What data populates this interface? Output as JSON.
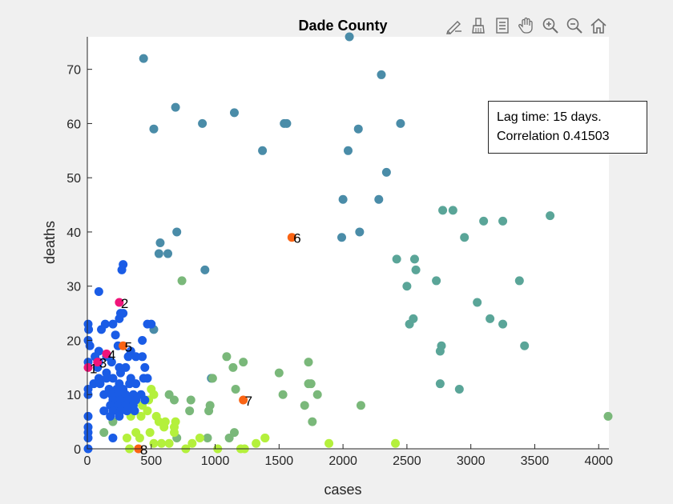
{
  "toolbar": {
    "buttons": [
      {
        "name": "edit-plot-icon"
      },
      {
        "name": "brush-icon"
      },
      {
        "name": "data-tips-icon"
      },
      {
        "name": "pan-hand-icon"
      },
      {
        "name": "zoom-in-icon"
      },
      {
        "name": "zoom-out-icon"
      },
      {
        "name": "home-icon"
      }
    ]
  },
  "legend": {
    "line1": "Lag time: 15 days.",
    "line2": "Correlation 0.41503"
  },
  "chart_data": {
    "type": "scatter",
    "title": "Dade County",
    "xlabel": "cases",
    "ylabel": "deaths",
    "xlim": [
      0,
      4080
    ],
    "ylim": [
      0,
      76
    ],
    "xticks": [
      0,
      500,
      1000,
      1500,
      2000,
      2500,
      3000,
      3500,
      4000
    ],
    "yticks": [
      0,
      10,
      20,
      30,
      40,
      50,
      60,
      70
    ],
    "grid": false,
    "colors": {
      "blue": "#1a5ce6",
      "steel": "#4a8ca8",
      "teal": "#5aa598",
      "green": "#7ab87a",
      "lime": "#b4f03c",
      "pink": "#f0147a",
      "orange": "#fa6414"
    },
    "points": [
      {
        "x": 2050,
        "y": 76,
        "c": "steel"
      },
      {
        "x": 2300,
        "y": 69,
        "c": "steel"
      },
      {
        "x": 440,
        "y": 72,
        "c": "steel"
      },
      {
        "x": 690,
        "y": 63,
        "c": "steel"
      },
      {
        "x": 1150,
        "y": 62,
        "c": "steel"
      },
      {
        "x": 520,
        "y": 59,
        "c": "steel"
      },
      {
        "x": 900,
        "y": 60,
        "c": "steel"
      },
      {
        "x": 1540,
        "y": 60,
        "c": "steel"
      },
      {
        "x": 1560,
        "y": 60,
        "c": "steel"
      },
      {
        "x": 2450,
        "y": 60,
        "c": "steel"
      },
      {
        "x": 2120,
        "y": 59,
        "c": "steel"
      },
      {
        "x": 1370,
        "y": 55,
        "c": "steel"
      },
      {
        "x": 2040,
        "y": 55,
        "c": "steel"
      },
      {
        "x": 2340,
        "y": 51,
        "c": "steel"
      },
      {
        "x": 2000,
        "y": 46,
        "c": "steel"
      },
      {
        "x": 2280,
        "y": 46,
        "c": "steel"
      },
      {
        "x": 2130,
        "y": 40,
        "c": "steel"
      },
      {
        "x": 1990,
        "y": 39,
        "c": "steel"
      },
      {
        "x": 700,
        "y": 40,
        "c": "steel"
      },
      {
        "x": 570,
        "y": 38,
        "c": "steel"
      },
      {
        "x": 560,
        "y": 36,
        "c": "steel"
      },
      {
        "x": 630,
        "y": 36,
        "c": "steel"
      },
      {
        "x": 920,
        "y": 33,
        "c": "steel"
      },
      {
        "x": 970,
        "y": 13,
        "c": "steel"
      },
      {
        "x": 520,
        "y": 22,
        "c": "steel"
      },
      {
        "x": 2780,
        "y": 44,
        "c": "teal"
      },
      {
        "x": 2860,
        "y": 44,
        "c": "teal"
      },
      {
        "x": 3100,
        "y": 42,
        "c": "teal"
      },
      {
        "x": 3250,
        "y": 42,
        "c": "teal"
      },
      {
        "x": 3620,
        "y": 43,
        "c": "teal"
      },
      {
        "x": 2950,
        "y": 39,
        "c": "teal"
      },
      {
        "x": 2420,
        "y": 35,
        "c": "teal"
      },
      {
        "x": 2560,
        "y": 35,
        "c": "teal"
      },
      {
        "x": 2570,
        "y": 33,
        "c": "teal"
      },
      {
        "x": 2730,
        "y": 31,
        "c": "teal"
      },
      {
        "x": 3380,
        "y": 31,
        "c": "teal"
      },
      {
        "x": 2500,
        "y": 30,
        "c": "teal"
      },
      {
        "x": 3050,
        "y": 27,
        "c": "teal"
      },
      {
        "x": 3150,
        "y": 24,
        "c": "teal"
      },
      {
        "x": 3250,
        "y": 23,
        "c": "teal"
      },
      {
        "x": 2520,
        "y": 23,
        "c": "teal"
      },
      {
        "x": 2550,
        "y": 24,
        "c": "teal"
      },
      {
        "x": 2770,
        "y": 19,
        "c": "teal"
      },
      {
        "x": 2760,
        "y": 18,
        "c": "teal"
      },
      {
        "x": 3420,
        "y": 19,
        "c": "teal"
      },
      {
        "x": 2760,
        "y": 12,
        "c": "teal"
      },
      {
        "x": 2910,
        "y": 11,
        "c": "teal"
      },
      {
        "x": 740,
        "y": 31,
        "c": "green"
      },
      {
        "x": 1090,
        "y": 17,
        "c": "green"
      },
      {
        "x": 1220,
        "y": 16,
        "c": "green"
      },
      {
        "x": 1730,
        "y": 16,
        "c": "green"
      },
      {
        "x": 1140,
        "y": 15,
        "c": "green"
      },
      {
        "x": 1500,
        "y": 14,
        "c": "green"
      },
      {
        "x": 1730,
        "y": 12,
        "c": "green"
      },
      {
        "x": 1750,
        "y": 12,
        "c": "green"
      },
      {
        "x": 1160,
        "y": 11,
        "c": "green"
      },
      {
        "x": 1530,
        "y": 10,
        "c": "green"
      },
      {
        "x": 1800,
        "y": 10,
        "c": "green"
      },
      {
        "x": 640,
        "y": 10,
        "c": "green"
      },
      {
        "x": 680,
        "y": 9,
        "c": "green"
      },
      {
        "x": 810,
        "y": 9,
        "c": "green"
      },
      {
        "x": 980,
        "y": 13,
        "c": "green"
      },
      {
        "x": 960,
        "y": 8,
        "c": "green"
      },
      {
        "x": 950,
        "y": 7,
        "c": "green"
      },
      {
        "x": 1700,
        "y": 8,
        "c": "green"
      },
      {
        "x": 2140,
        "y": 8,
        "c": "green"
      },
      {
        "x": 800,
        "y": 7,
        "c": "green"
      },
      {
        "x": 1760,
        "y": 5,
        "c": "green"
      },
      {
        "x": 1150,
        "y": 3,
        "c": "green"
      },
      {
        "x": 1110,
        "y": 2,
        "c": "green"
      },
      {
        "x": 940,
        "y": 2,
        "c": "green"
      },
      {
        "x": 700,
        "y": 2,
        "c": "green"
      },
      {
        "x": 200,
        "y": 5,
        "c": "green"
      },
      {
        "x": 320,
        "y": 7,
        "c": "green"
      },
      {
        "x": 260,
        "y": 10,
        "c": "green"
      },
      {
        "x": 130,
        "y": 3,
        "c": "green"
      },
      {
        "x": 500,
        "y": 11,
        "c": "lime"
      },
      {
        "x": 520,
        "y": 10,
        "c": "lime"
      },
      {
        "x": 480,
        "y": 9,
        "c": "lime"
      },
      {
        "x": 430,
        "y": 8,
        "c": "lime"
      },
      {
        "x": 470,
        "y": 7,
        "c": "lime"
      },
      {
        "x": 540,
        "y": 6,
        "c": "lime"
      },
      {
        "x": 420,
        "y": 6,
        "c": "lime"
      },
      {
        "x": 340,
        "y": 6,
        "c": "lime"
      },
      {
        "x": 560,
        "y": 5,
        "c": "lime"
      },
      {
        "x": 600,
        "y": 4,
        "c": "lime"
      },
      {
        "x": 610,
        "y": 5,
        "c": "lime"
      },
      {
        "x": 680,
        "y": 4,
        "c": "lime"
      },
      {
        "x": 690,
        "y": 5,
        "c": "lime"
      },
      {
        "x": 680,
        "y": 3,
        "c": "lime"
      },
      {
        "x": 490,
        "y": 3,
        "c": "lime"
      },
      {
        "x": 380,
        "y": 3,
        "c": "lime"
      },
      {
        "x": 310,
        "y": 2,
        "c": "lime"
      },
      {
        "x": 410,
        "y": 2,
        "c": "lime"
      },
      {
        "x": 520,
        "y": 1,
        "c": "lime"
      },
      {
        "x": 580,
        "y": 1,
        "c": "lime"
      },
      {
        "x": 640,
        "y": 1,
        "c": "lime"
      },
      {
        "x": 820,
        "y": 1,
        "c": "lime"
      },
      {
        "x": 880,
        "y": 2,
        "c": "lime"
      },
      {
        "x": 330,
        "y": 0,
        "c": "lime"
      },
      {
        "x": 770,
        "y": 0,
        "c": "lime"
      },
      {
        "x": 1020,
        "y": 0,
        "c": "lime"
      },
      {
        "x": 1200,
        "y": 0,
        "c": "lime"
      },
      {
        "x": 1230,
        "y": 0,
        "c": "lime"
      },
      {
        "x": 1320,
        "y": 1,
        "c": "lime"
      },
      {
        "x": 1390,
        "y": 2,
        "c": "lime"
      },
      {
        "x": 1890,
        "y": 1,
        "c": "lime"
      },
      {
        "x": 2410,
        "y": 1,
        "c": "lime"
      },
      {
        "x": 1390,
        "y": 2,
        "c": "lime"
      },
      {
        "x": 4090,
        "y": 6,
        "c": "green"
      },
      {
        "x": 0,
        "y": 23,
        "c": "blue"
      },
      {
        "x": 10,
        "y": 22,
        "c": "blue"
      },
      {
        "x": 0,
        "y": 20,
        "c": "blue"
      },
      {
        "x": 20,
        "y": 19,
        "c": "blue"
      },
      {
        "x": 0,
        "y": 16,
        "c": "blue"
      },
      {
        "x": 0,
        "y": 11,
        "c": "blue"
      },
      {
        "x": 0,
        "y": 10,
        "c": "blue"
      },
      {
        "x": 0,
        "y": 6,
        "c": "blue"
      },
      {
        "x": 0,
        "y": 4,
        "c": "blue"
      },
      {
        "x": 0,
        "y": 3,
        "c": "blue"
      },
      {
        "x": 0,
        "y": 2,
        "c": "blue"
      },
      {
        "x": 0,
        "y": 0,
        "c": "blue"
      },
      {
        "x": 90,
        "y": 29,
        "c": "blue"
      },
      {
        "x": 280,
        "y": 34,
        "c": "blue"
      },
      {
        "x": 270,
        "y": 33,
        "c": "blue"
      },
      {
        "x": 110,
        "y": 22,
        "c": "blue"
      },
      {
        "x": 140,
        "y": 23,
        "c": "blue"
      },
      {
        "x": 200,
        "y": 23,
        "c": "blue"
      },
      {
        "x": 260,
        "y": 25,
        "c": "blue"
      },
      {
        "x": 280,
        "y": 25,
        "c": "blue"
      },
      {
        "x": 250,
        "y": 24,
        "c": "blue"
      },
      {
        "x": 470,
        "y": 23,
        "c": "blue"
      },
      {
        "x": 500,
        "y": 23,
        "c": "blue"
      },
      {
        "x": 220,
        "y": 21,
        "c": "blue"
      },
      {
        "x": 430,
        "y": 20,
        "c": "blue"
      },
      {
        "x": 240,
        "y": 19,
        "c": "blue"
      },
      {
        "x": 340,
        "y": 18,
        "c": "blue"
      },
      {
        "x": 90,
        "y": 18,
        "c": "blue"
      },
      {
        "x": 150,
        "y": 17,
        "c": "blue"
      },
      {
        "x": 60,
        "y": 17,
        "c": "blue"
      },
      {
        "x": 90,
        "y": 16,
        "c": "blue"
      },
      {
        "x": 190,
        "y": 16,
        "c": "blue"
      },
      {
        "x": 320,
        "y": 17,
        "c": "blue"
      },
      {
        "x": 380,
        "y": 17,
        "c": "blue"
      },
      {
        "x": 430,
        "y": 17,
        "c": "blue"
      },
      {
        "x": 80,
        "y": 15,
        "c": "blue"
      },
      {
        "x": 150,
        "y": 14,
        "c": "blue"
      },
      {
        "x": 250,
        "y": 15,
        "c": "blue"
      },
      {
        "x": 300,
        "y": 15,
        "c": "blue"
      },
      {
        "x": 450,
        "y": 15,
        "c": "blue"
      },
      {
        "x": 90,
        "y": 13,
        "c": "blue"
      },
      {
        "x": 150,
        "y": 13,
        "c": "blue"
      },
      {
        "x": 200,
        "y": 13,
        "c": "blue"
      },
      {
        "x": 260,
        "y": 14,
        "c": "blue"
      },
      {
        "x": 340,
        "y": 13,
        "c": "blue"
      },
      {
        "x": 440,
        "y": 13,
        "c": "blue"
      },
      {
        "x": 470,
        "y": 13,
        "c": "blue"
      },
      {
        "x": 50,
        "y": 12,
        "c": "blue"
      },
      {
        "x": 100,
        "y": 12,
        "c": "blue"
      },
      {
        "x": 250,
        "y": 12,
        "c": "blue"
      },
      {
        "x": 330,
        "y": 12,
        "c": "blue"
      },
      {
        "x": 380,
        "y": 12,
        "c": "blue"
      },
      {
        "x": 170,
        "y": 11,
        "c": "blue"
      },
      {
        "x": 230,
        "y": 11,
        "c": "blue"
      },
      {
        "x": 280,
        "y": 11,
        "c": "blue"
      },
      {
        "x": 130,
        "y": 10,
        "c": "blue"
      },
      {
        "x": 190,
        "y": 10,
        "c": "blue"
      },
      {
        "x": 240,
        "y": 10,
        "c": "blue"
      },
      {
        "x": 300,
        "y": 10,
        "c": "blue"
      },
      {
        "x": 360,
        "y": 10,
        "c": "blue"
      },
      {
        "x": 420,
        "y": 10,
        "c": "blue"
      },
      {
        "x": 200,
        "y": 9,
        "c": "blue"
      },
      {
        "x": 260,
        "y": 9,
        "c": "blue"
      },
      {
        "x": 320,
        "y": 9,
        "c": "blue"
      },
      {
        "x": 380,
        "y": 9,
        "c": "blue"
      },
      {
        "x": 450,
        "y": 9,
        "c": "blue"
      },
      {
        "x": 180,
        "y": 8,
        "c": "blue"
      },
      {
        "x": 240,
        "y": 8,
        "c": "blue"
      },
      {
        "x": 300,
        "y": 8,
        "c": "blue"
      },
      {
        "x": 360,
        "y": 8,
        "c": "blue"
      },
      {
        "x": 130,
        "y": 7,
        "c": "blue"
      },
      {
        "x": 200,
        "y": 7,
        "c": "blue"
      },
      {
        "x": 260,
        "y": 7,
        "c": "blue"
      },
      {
        "x": 310,
        "y": 7,
        "c": "blue"
      },
      {
        "x": 370,
        "y": 7,
        "c": "blue"
      },
      {
        "x": 180,
        "y": 6,
        "c": "blue"
      },
      {
        "x": 250,
        "y": 6,
        "c": "blue"
      },
      {
        "x": 200,
        "y": 2,
        "c": "blue"
      }
    ],
    "labeled_points": [
      {
        "label": "1",
        "x": 0,
        "y": 15,
        "c": "pink"
      },
      {
        "label": "2",
        "x": 250,
        "y": 27,
        "c": "pink"
      },
      {
        "label": "3",
        "x": 80,
        "y": 16,
        "c": "pink"
      },
      {
        "label": "4",
        "x": 150,
        "y": 17.5,
        "c": "pink"
      },
      {
        "label": "5",
        "x": 280,
        "y": 19,
        "c": "orange"
      },
      {
        "label": "6",
        "x": 1600,
        "y": 39,
        "c": "orange"
      },
      {
        "label": "7",
        "x": 1220,
        "y": 9,
        "c": "orange"
      },
      {
        "label": "8",
        "x": 400,
        "y": 0,
        "c": "orange"
      }
    ]
  }
}
